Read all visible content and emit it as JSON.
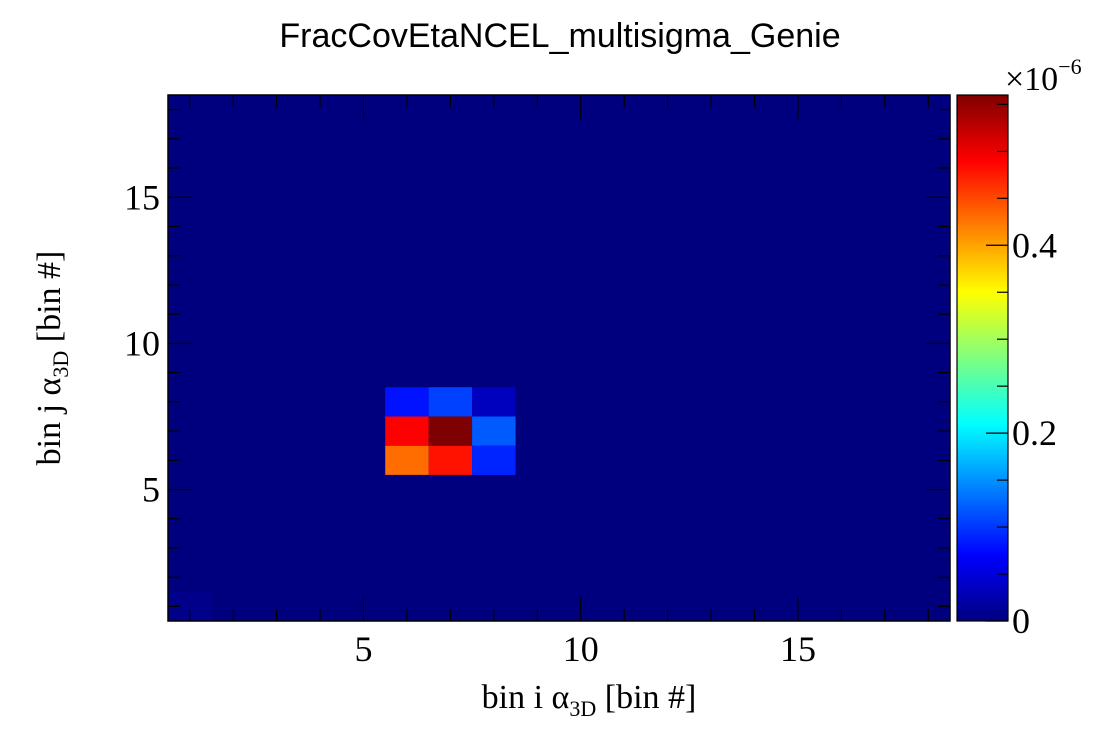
{
  "chart_data": {
    "type": "heatmap",
    "title": "FracCovEtaNCEL_multisigma_Genie",
    "xlabel": {
      "main": "bin i  α",
      "sub": "3D",
      "unit": " [bin #]"
    },
    "ylabel": {
      "main": "bin j  α",
      "sub": "3D",
      "unit": " [bin #]"
    },
    "x_range": [
      0.5,
      18.5
    ],
    "y_range": [
      0.5,
      18.5
    ],
    "x_ticks": [
      5,
      10,
      15
    ],
    "y_ticks": [
      5,
      10,
      15
    ],
    "z_range": [
      0,
      5.6e-07
    ],
    "z_exponent_label": "×10",
    "z_exponent_power": "−6",
    "z_ticks": [
      {
        "value": 0,
        "label": "0"
      },
      {
        "value": 2e-07,
        "label": "0.2"
      },
      {
        "value": 4e-07,
        "label": "0.4"
      }
    ],
    "colormap": [
      "#00007f",
      "#0000ff",
      "#007fff",
      "#00ffff",
      "#7fff7f",
      "#ffff00",
      "#ff7f00",
      "#ff0000",
      "#7f0000"
    ],
    "background_value": 0,
    "cells": [
      {
        "i": 1,
        "j": 1,
        "value": 6e-09
      },
      {
        "i": 6,
        "j": 6,
        "value": 4.3e-07
      },
      {
        "i": 7,
        "j": 6,
        "value": 4.8e-07
      },
      {
        "i": 8,
        "j": 6,
        "value": 9e-08
      },
      {
        "i": 6,
        "j": 7,
        "value": 4.9e-07
      },
      {
        "i": 7,
        "j": 7,
        "value": 5.6e-07
      },
      {
        "i": 8,
        "j": 7,
        "value": 1.2e-07
      },
      {
        "i": 6,
        "j": 8,
        "value": 8e-08
      },
      {
        "i": 7,
        "j": 8,
        "value": 1.05e-07
      },
      {
        "i": 8,
        "j": 8,
        "value": 3.5e-08
      }
    ]
  }
}
